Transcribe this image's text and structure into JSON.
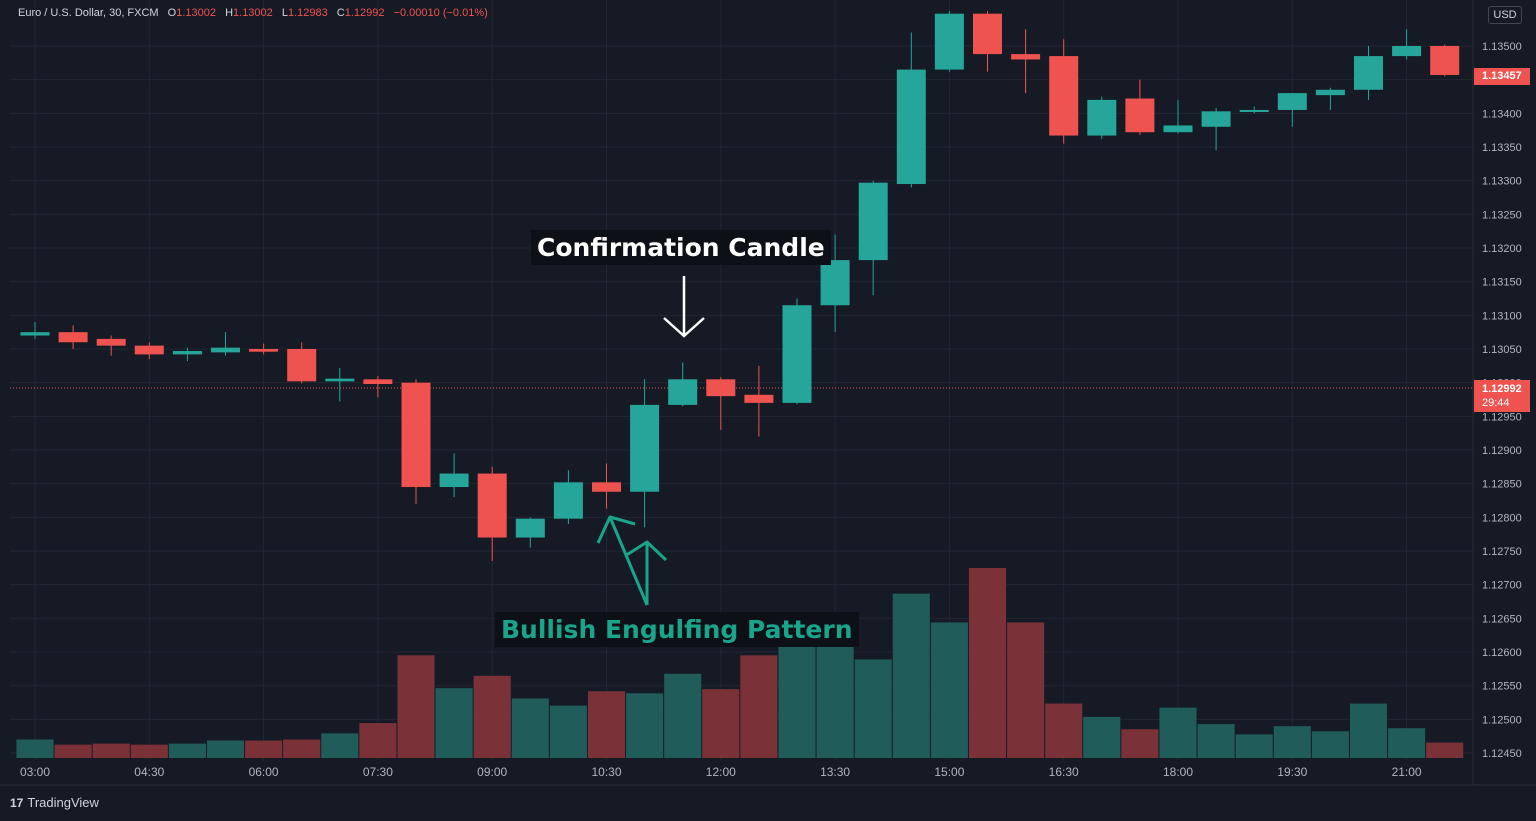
{
  "legend": {
    "symbol": "Euro / U.S. Dollar, 30, FXCM",
    "open_key": "O",
    "open": "1.13002",
    "high_key": "H",
    "high": "1.13002",
    "low_key": "L",
    "low": "1.12983",
    "close_key": "C",
    "close": "1.12992",
    "change": "−0.00010 (−0.01%)"
  },
  "currency": "USD",
  "price_tags": {
    "last_close": "1.13457",
    "current": "1.12992",
    "countdown": "29:44"
  },
  "annotations": {
    "confirmation": "Confirmation Candle",
    "pattern": "Bullish Engulfing Pattern"
  },
  "branding": "TradingView",
  "colors": {
    "up": "#26a69a",
    "down": "#ef5350",
    "background": "#161a25",
    "grid": "#232632",
    "pattern_label": "#1aa58a"
  },
  "chart_data": {
    "type": "candlestick",
    "y_axis": {
      "min": 1.1243,
      "max": 1.1355,
      "tick_labels": [
        "1.12450",
        "1.12500",
        "1.12550",
        "1.12600",
        "1.12650",
        "1.12700",
        "1.12750",
        "1.12800",
        "1.12850",
        "1.12900",
        "1.12950",
        "1.13000",
        "1.13050",
        "1.13100",
        "1.13150",
        "1.13200",
        "1.13250",
        "1.13300",
        "1.13350",
        "1.13400",
        "1.13450",
        "1.13500"
      ]
    },
    "x_axis": {
      "tick_labels": [
        "03:00",
        "04:30",
        "06:00",
        "07:30",
        "09:00",
        "10:30",
        "12:00",
        "13:30",
        "15:00",
        "16:30",
        "18:00",
        "19:30",
        "21:00"
      ]
    },
    "current_price_line": 1.12992,
    "candles": [
      {
        "o": 1.1307,
        "h": 1.1309,
        "l": 1.13065,
        "c": 1.13075,
        "v": 18
      },
      {
        "o": 1.13075,
        "h": 1.13085,
        "l": 1.1305,
        "c": 1.1306,
        "v": 13
      },
      {
        "o": 1.13065,
        "h": 1.1307,
        "l": 1.1304,
        "c": 1.13055,
        "v": 14
      },
      {
        "o": 1.13055,
        "h": 1.1306,
        "l": 1.13035,
        "c": 1.13042,
        "v": 13
      },
      {
        "o": 1.13042,
        "h": 1.13052,
        "l": 1.13032,
        "c": 1.13047,
        "v": 14
      },
      {
        "o": 1.13045,
        "h": 1.13075,
        "l": 1.1304,
        "c": 1.13052,
        "v": 17
      },
      {
        "o": 1.1305,
        "h": 1.13058,
        "l": 1.13042,
        "c": 1.13046,
        "v": 17
      },
      {
        "o": 1.1305,
        "h": 1.1306,
        "l": 1.12999,
        "c": 1.13002,
        "v": 18
      },
      {
        "o": 1.13002,
        "h": 1.13022,
        "l": 1.12972,
        "c": 1.13006,
        "v": 24
      },
      {
        "o": 1.13005,
        "h": 1.1301,
        "l": 1.12978,
        "c": 1.12998,
        "v": 34
      },
      {
        "o": 1.13,
        "h": 1.13005,
        "l": 1.1282,
        "c": 1.12845,
        "v": 100
      },
      {
        "o": 1.12845,
        "h": 1.12895,
        "l": 1.1283,
        "c": 1.12865,
        "v": 68
      },
      {
        "o": 1.12865,
        "h": 1.12875,
        "l": 1.12735,
        "c": 1.1277,
        "v": 80
      },
      {
        "o": 1.1277,
        "h": 1.128,
        "l": 1.12755,
        "c": 1.12798,
        "v": 58
      },
      {
        "o": 1.12798,
        "h": 1.1287,
        "l": 1.1279,
        "c": 1.12852,
        "v": 51
      },
      {
        "o": 1.12852,
        "h": 1.1288,
        "l": 1.12813,
        "c": 1.12838,
        "v": 65
      },
      {
        "o": 1.12838,
        "h": 1.13005,
        "l": 1.12785,
        "c": 1.12967,
        "v": 63
      },
      {
        "o": 1.12967,
        "h": 1.1303,
        "l": 1.12965,
        "c": 1.13005,
        "v": 82
      },
      {
        "o": 1.13005,
        "h": 1.13008,
        "l": 1.1293,
        "c": 1.1298,
        "v": 67
      },
      {
        "o": 1.12982,
        "h": 1.13025,
        "l": 1.1292,
        "c": 1.1297,
        "v": 100
      },
      {
        "o": 1.1297,
        "h": 1.13125,
        "l": 1.12968,
        "c": 1.13115,
        "v": 118
      },
      {
        "o": 1.13115,
        "h": 1.1322,
        "l": 1.13075,
        "c": 1.13182,
        "v": 125
      },
      {
        "o": 1.13182,
        "h": 1.133,
        "l": 1.1313,
        "c": 1.13297,
        "v": 96
      },
      {
        "o": 1.13295,
        "h": 1.1352,
        "l": 1.1329,
        "c": 1.13465,
        "v": 160
      },
      {
        "o": 1.13465,
        "h": 1.13552,
        "l": 1.13462,
        "c": 1.13548,
        "v": 132
      },
      {
        "o": 1.13548,
        "h": 1.13552,
        "l": 1.13462,
        "c": 1.13488,
        "v": 185
      },
      {
        "o": 1.13488,
        "h": 1.13525,
        "l": 1.1343,
        "c": 1.1348,
        "v": 132
      },
      {
        "o": 1.13485,
        "h": 1.1351,
        "l": 1.13355,
        "c": 1.13367,
        "v": 53
      },
      {
        "o": 1.13367,
        "h": 1.13425,
        "l": 1.13362,
        "c": 1.1342,
        "v": 40
      },
      {
        "o": 1.13422,
        "h": 1.1345,
        "l": 1.13368,
        "c": 1.13372,
        "v": 28
      },
      {
        "o": 1.13372,
        "h": 1.1342,
        "l": 1.1337,
        "c": 1.13382,
        "v": 49
      },
      {
        "o": 1.1338,
        "h": 1.13408,
        "l": 1.13345,
        "c": 1.13403,
        "v": 33
      },
      {
        "o": 1.13402,
        "h": 1.1341,
        "l": 1.134,
        "c": 1.13405,
        "v": 23
      },
      {
        "o": 1.13405,
        "h": 1.1343,
        "l": 1.1338,
        "c": 1.1343,
        "v": 31
      },
      {
        "o": 1.13427,
        "h": 1.13438,
        "l": 1.13405,
        "c": 1.13435,
        "v": 26
      },
      {
        "o": 1.13435,
        "h": 1.135,
        "l": 1.1342,
        "c": 1.13485,
        "v": 53
      },
      {
        "o": 1.13485,
        "h": 1.13525,
        "l": 1.1348,
        "c": 1.135,
        "v": 29
      },
      {
        "o": 1.135,
        "h": 1.13502,
        "l": 1.13455,
        "c": 1.13457,
        "v": 15
      }
    ]
  }
}
